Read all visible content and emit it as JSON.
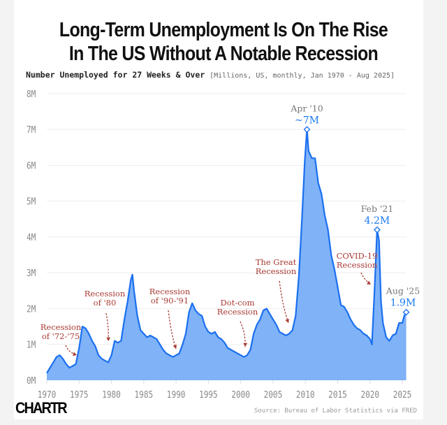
{
  "chart_data": {
    "type": "area",
    "title_line1": "Long-Term Unemployment Is On The Rise",
    "title_line2": "In The US Without A Notable Recession",
    "subtitle": "Number Unemployed for 27 Weeks & Over",
    "subtitle_meta": "[Millions, US, monthly, Jan 1970 - Aug 2025]",
    "xlabel": "",
    "ylabel": "",
    "xlim": [
      1970,
      2025.6
    ],
    "ylim": [
      0,
      8
    ],
    "grid": true,
    "y_ticks": [
      0,
      1,
      2,
      3,
      4,
      5,
      6,
      7,
      8
    ],
    "y_tick_labels": [
      "0M",
      "1M",
      "2M",
      "3M",
      "4M",
      "5M",
      "6M",
      "7M",
      "8M"
    ],
    "x_ticks": [
      1970,
      1975,
      1980,
      1985,
      1990,
      1995,
      2000,
      2005,
      2010,
      2015,
      2020,
      2025
    ],
    "x_tick_labels": [
      "1970",
      "1975",
      "1980",
      "1985",
      "1990",
      "1995",
      "2000",
      "2005",
      "2010",
      "2015",
      "2020",
      "2025"
    ],
    "series": [
      {
        "name": "Number Unemployed for 27 Weeks & Over (Millions)",
        "x": [
          1970.0,
          1970.5,
          1971,
          1971.5,
          1972,
          1972.5,
          1973,
          1973.5,
          1974,
          1974.5,
          1975,
          1975.5,
          1976,
          1976.5,
          1977,
          1977.5,
          1978,
          1978.5,
          1979,
          1979.5,
          1980,
          1980.5,
          1981,
          1981.5,
          1982,
          1982.5,
          1983,
          1983.25,
          1983.5,
          1984,
          1984.5,
          1985,
          1985.5,
          1986,
          1986.5,
          1987,
          1987.5,
          1988,
          1988.5,
          1989,
          1989.5,
          1990,
          1990.5,
          1991,
          1991.5,
          1992,
          1992.5,
          1993,
          1993.5,
          1994,
          1994.5,
          1995,
          1995.5,
          1996,
          1996.5,
          1997,
          1997.5,
          1998,
          1998.5,
          1999,
          1999.5,
          2000,
          2000.5,
          2001,
          2001.5,
          2002,
          2002.5,
          2003,
          2003.5,
          2004,
          2004.5,
          2005,
          2005.5,
          2006,
          2006.5,
          2007,
          2007.5,
          2008,
          2008.5,
          2009,
          2009.5,
          2009.9,
          2010.25,
          2010.5,
          2011,
          2011.5,
          2012,
          2012.5,
          2013,
          2013.5,
          2014,
          2014.5,
          2015,
          2015.5,
          2016,
          2016.5,
          2017,
          2017.5,
          2018,
          2018.5,
          2019,
          2019.5,
          2020,
          2020.3,
          2020.7,
          2021.1,
          2021.4,
          2021.7,
          2022,
          2022.5,
          2023,
          2023.5,
          2024,
          2024.5,
          2025,
          2025.3,
          2025.6
        ],
        "values": [
          0.2,
          0.35,
          0.5,
          0.65,
          0.7,
          0.6,
          0.45,
          0.35,
          0.4,
          0.45,
          0.9,
          1.5,
          1.45,
          1.3,
          1.1,
          0.95,
          0.7,
          0.6,
          0.55,
          0.5,
          0.7,
          1.1,
          1.05,
          1.1,
          1.7,
          2.2,
          2.8,
          2.95,
          2.5,
          1.8,
          1.4,
          1.3,
          1.2,
          1.25,
          1.2,
          1.15,
          1.0,
          0.85,
          0.75,
          0.7,
          0.65,
          0.7,
          0.75,
          1.0,
          1.3,
          1.9,
          2.15,
          1.95,
          1.85,
          1.8,
          1.5,
          1.35,
          1.3,
          1.35,
          1.2,
          1.15,
          1.05,
          0.9,
          0.85,
          0.8,
          0.75,
          0.7,
          0.65,
          0.7,
          0.85,
          1.3,
          1.55,
          1.7,
          1.95,
          2.0,
          1.85,
          1.7,
          1.55,
          1.35,
          1.3,
          1.25,
          1.3,
          1.4,
          1.8,
          2.9,
          4.6,
          6.1,
          7.0,
          6.4,
          6.2,
          6.2,
          5.5,
          5.2,
          4.6,
          4.2,
          3.5,
          3.1,
          2.6,
          2.1,
          2.05,
          1.9,
          1.7,
          1.55,
          1.45,
          1.4,
          1.3,
          1.25,
          1.15,
          1.0,
          2.5,
          4.2,
          3.9,
          2.2,
          1.6,
          1.2,
          1.1,
          1.25,
          1.3,
          1.6,
          1.6,
          1.8,
          1.9
        ]
      }
    ],
    "highlights": [
      {
        "x": 2010.25,
        "y": 7.0,
        "date": "Apr '10",
        "value_label": "~7M"
      },
      {
        "x": 2021.1,
        "y": 4.2,
        "date": "Feb '21",
        "value_label": "4.2M"
      },
      {
        "x": 2025.6,
        "y": 1.9,
        "date": "Aug '25",
        "value_label": "1.9M"
      }
    ],
    "annotations": [
      {
        "line1": "Recession",
        "line2": "of '72-'75"
      },
      {
        "line1": "Recession",
        "line2": "of '80"
      },
      {
        "line1": "Recession",
        "line2": "of '90-'91"
      },
      {
        "line1": "Dot-com",
        "line2": "Recession"
      },
      {
        "line1": "The Great",
        "line2": "Recession"
      },
      {
        "line1": "COVID-19",
        "line2": "Recession"
      }
    ],
    "colors": {
      "line": "#1a6ff0",
      "fill": "#7fb2f7",
      "annotation": "#a83a32",
      "highlight_value": "#1a7af0",
      "grid": "#eeeeee"
    }
  },
  "footer": {
    "logo": "CHARTR",
    "source": "Source: Bureau of Labor Statistics via FRED"
  }
}
